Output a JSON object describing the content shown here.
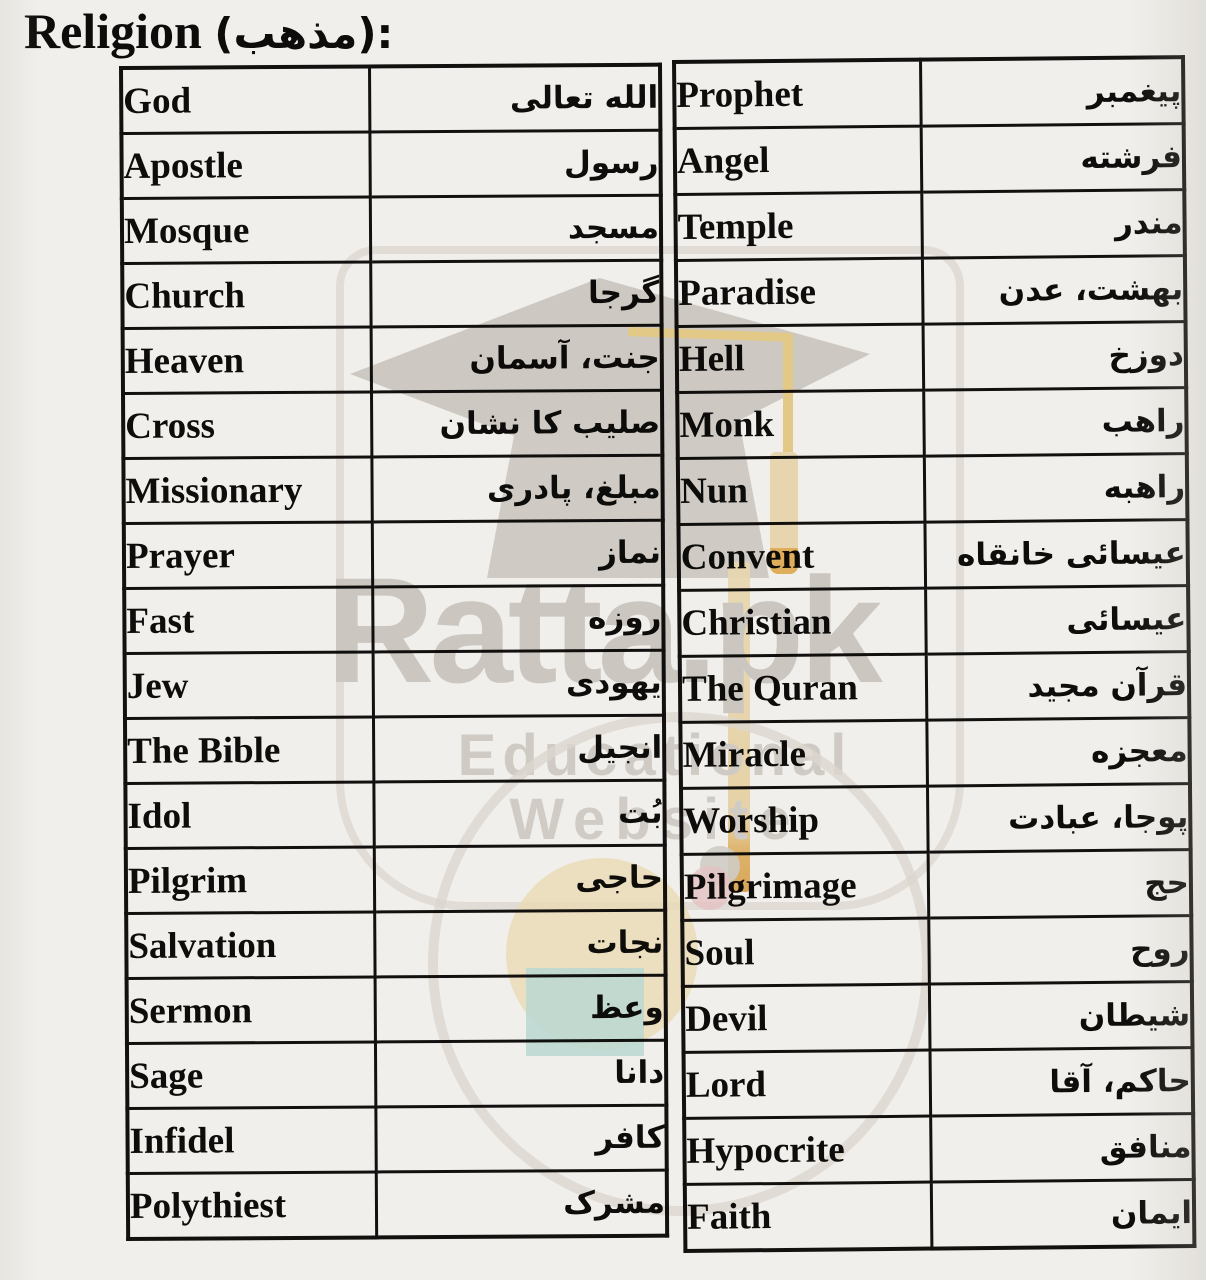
{
  "header": {
    "title_en": "Religion",
    "title_ur": "(مذهب):"
  },
  "colors": {
    "paper": "#f1efeb",
    "ink": "#131110",
    "watermark_gray": "#d7d5d1",
    "watermark_yellow": "#f0d794",
    "watermark_orange": "#ecba62",
    "watermark_teal": "#c5e7e4"
  },
  "watermark": {
    "brand": "Ratta.pk",
    "tagline_line1": "Educational",
    "tagline_line2": "Website"
  },
  "left_table": {
    "rows": [
      {
        "en": "God",
        "ur": "الله تعالى"
      },
      {
        "en": "Apostle",
        "ur": "رسول"
      },
      {
        "en": "Mosque",
        "ur": "مسجد"
      },
      {
        "en": "Church",
        "ur": "گرجا"
      },
      {
        "en": "Heaven",
        "ur": "جنت، آسمان"
      },
      {
        "en": "Cross",
        "ur": "صليب کا نشان"
      },
      {
        "en": "Missionary",
        "ur": "مبلغ، پادری"
      },
      {
        "en": "Prayer",
        "ur": "نماز"
      },
      {
        "en": "Fast",
        "ur": "روزه"
      },
      {
        "en": "Jew",
        "ur": "يهودی"
      },
      {
        "en": "The Bible",
        "ur": "انجيل"
      },
      {
        "en": "Idol",
        "ur": "بُت"
      },
      {
        "en": "Pilgrim",
        "ur": "حاجی"
      },
      {
        "en": "Salvation",
        "ur": "نجات"
      },
      {
        "en": "Sermon",
        "ur": "وعظ"
      },
      {
        "en": "Sage",
        "ur": "دانا"
      },
      {
        "en": "Infidel",
        "ur": "کافر"
      },
      {
        "en": "Polythiest",
        "ur": "مشرک"
      }
    ]
  },
  "right_table": {
    "rows": [
      {
        "en": "Prophet",
        "ur": "پيغمبر"
      },
      {
        "en": "Angel",
        "ur": "فرشته"
      },
      {
        "en": "Temple",
        "ur": "مندر"
      },
      {
        "en": "Paradise",
        "ur": "بهشت، عدن"
      },
      {
        "en": "Hell",
        "ur": "دوزخ"
      },
      {
        "en": "Monk",
        "ur": "راهب"
      },
      {
        "en": "Nun",
        "ur": "راهبه"
      },
      {
        "en": "Convent",
        "ur": "عيسائی خانقاه"
      },
      {
        "en": "Christian",
        "ur": "عيسائی"
      },
      {
        "en": "The Quran",
        "ur": "قرآن مجيد"
      },
      {
        "en": "Miracle",
        "ur": "معجزه"
      },
      {
        "en": "Worship",
        "ur": "پوجا، عبادت"
      },
      {
        "en": "Pilgrimage",
        "ur": "حج"
      },
      {
        "en": "Soul",
        "ur": "روح"
      },
      {
        "en": "Devil",
        "ur": "شيطان"
      },
      {
        "en": "Lord",
        "ur": "حاکم، آقا"
      },
      {
        "en": "Hypocrite",
        "ur": "منافق"
      },
      {
        "en": "Faith",
        "ur": "ايمان"
      }
    ]
  }
}
